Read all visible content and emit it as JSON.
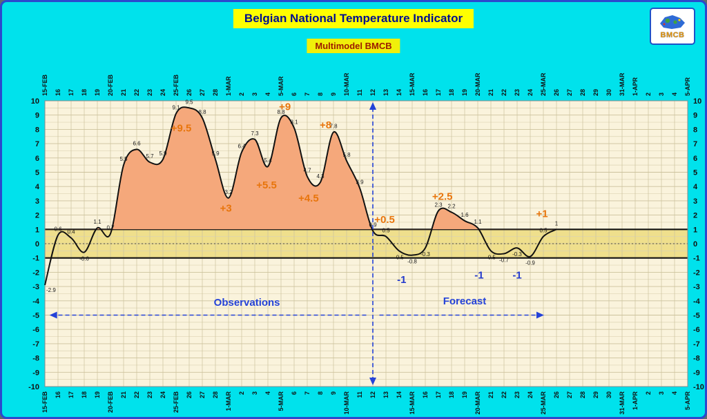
{
  "header": {
    "title": "Belgian National Temperature Indicator",
    "subtitle": "Multimodel BMCB",
    "logo_text": "BMCB"
  },
  "colors": {
    "background": "#00E2EC",
    "frame_border": "#2B49CE",
    "title_bg": "#FFFF00",
    "title_text": "#000F8F",
    "subtitle_bg": "#F0F00A",
    "subtitle_text": "#9C1A00",
    "plot_bg": "#FAF3DC",
    "band_fill": "#EFDF8C",
    "grid_line": "#CCC29C",
    "grid_line_minor": "#DCD3B2",
    "area_fill": "#F5A87B",
    "curve_line": "#111111",
    "annotation_orange": "#E8750C",
    "annotation_blue": "#2238CC",
    "arrow_blue": "#2442D8",
    "axis_text": "#111111"
  },
  "chart_data": {
    "type": "area",
    "title": "Belgian National Temperature Indicator",
    "subtitle": "Multimodel BMCB",
    "ylim": [
      -10,
      10
    ],
    "y_tick_step": 1,
    "grid": true,
    "x_labels": [
      "15-FEB",
      "16",
      "17",
      "18",
      "19",
      "20-FEB",
      "21",
      "22",
      "23",
      "24",
      "25-FEB",
      "26",
      "27",
      "28",
      "1-MAR",
      "2",
      "3",
      "4",
      "5-MAR",
      "6",
      "7",
      "8",
      "9",
      "10-MAR",
      "11",
      "12",
      "13",
      "14",
      "15-MAR",
      "16",
      "17",
      "18",
      "19",
      "20-MAR",
      "21",
      "22",
      "23",
      "24",
      "25-MAR",
      "26",
      "27",
      "28",
      "29",
      "30",
      "31-MAR",
      "1-APR",
      "2",
      "3",
      "4",
      "5-APR"
    ],
    "series": [
      {
        "name": "temperature",
        "values": [
          -2.9,
          0.6,
          0.4,
          -0.6,
          1.1,
          0.7,
          5.5,
          6.6,
          5.7,
          5.9,
          9.1,
          9.5,
          8.8,
          5.9,
          3.2,
          6.4,
          7.3,
          5.4,
          8.8,
          8.1,
          4.7,
          4.3,
          7.8,
          5.8,
          3.9,
          0.9,
          0.5,
          -0.5,
          -0.8,
          -0.3,
          2.3,
          2.2,
          1.6,
          1.1,
          -0.5,
          -0.7,
          -0.3,
          -0.9,
          0.5,
          1,
          null,
          null,
          null,
          null,
          null,
          null,
          null,
          null,
          null,
          null
        ]
      }
    ],
    "band": {
      "from": -1,
      "to": 1
    },
    "divider_index": 25,
    "divider_label": "12",
    "regions": {
      "observations": {
        "text": "Observations",
        "x": 15.4,
        "y": -4.1
      },
      "forecast": {
        "text": "Forecast",
        "x": 32.0,
        "y": -4.0
      },
      "arrow_y": -5,
      "left_arrow_span": [
        24.5,
        0.35
      ],
      "right_arrow_span": [
        25.5,
        38.05
      ]
    },
    "annotations": [
      {
        "text": "+9.5",
        "x": 10.4,
        "y": 8.1,
        "color": "orange"
      },
      {
        "text": "+9",
        "x": 18.3,
        "y": 9.6,
        "color": "orange"
      },
      {
        "text": "+8",
        "x": 21.4,
        "y": 8.3,
        "color": "orange"
      },
      {
        "text": "+5.5",
        "x": 16.9,
        "y": 4.1,
        "color": "orange"
      },
      {
        "text": "+4.5",
        "x": 20.1,
        "y": 3.2,
        "color": "orange"
      },
      {
        "text": "+3",
        "x": 13.8,
        "y": 2.5,
        "color": "orange"
      },
      {
        "text": "+0.5",
        "x": 25.9,
        "y": 1.7,
        "color": "orange"
      },
      {
        "text": "+2.5",
        "x": 30.3,
        "y": 3.3,
        "color": "orange"
      },
      {
        "text": "+1",
        "x": 37.9,
        "y": 2.1,
        "color": "orange"
      },
      {
        "text": "-1",
        "x": 27.2,
        "y": -2.5,
        "color": "blue"
      },
      {
        "text": "-1",
        "x": 33.1,
        "y": -2.2,
        "color": "blue"
      },
      {
        "text": "-1",
        "x": 36.0,
        "y": -2.2,
        "color": "blue"
      }
    ],
    "point_labels_visible": true
  }
}
